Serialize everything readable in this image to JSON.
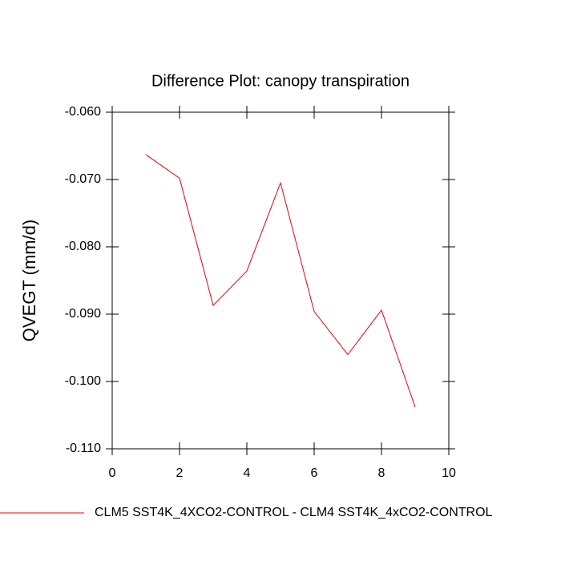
{
  "chart_data": {
    "type": "line",
    "title": "Difference Plot: canopy transpiration",
    "y_label": "QVEGT  (mm/d)",
    "x": [
      1,
      2,
      3,
      4,
      5,
      6,
      7,
      8,
      9
    ],
    "series": [
      {
        "name": "CLM5 SST4K_4XCO2-CONTROL - CLM4 SST4K_4xCO2-CONTROL",
        "color": "#e8000b",
        "values": [
          -0.0663,
          -0.0698,
          -0.0887,
          -0.0836,
          -0.0705,
          -0.0896,
          -0.096,
          -0.0894,
          -0.1038
        ]
      }
    ],
    "xlim": [
      0,
      10
    ],
    "xticks": [
      0,
      2,
      4,
      6,
      8,
      10
    ],
    "ylim": [
      -0.11,
      -0.06
    ],
    "yticks": [
      {
        "value": -0.11,
        "label": "-0.110"
      },
      {
        "value": -0.1,
        "label": "-0.100"
      },
      {
        "value": -0.09,
        "label": "-0.090"
      },
      {
        "value": -0.08,
        "label": "-0.080"
      },
      {
        "value": -0.07,
        "label": "-0.070"
      },
      {
        "value": -0.06,
        "label": "-0.060"
      }
    ]
  }
}
